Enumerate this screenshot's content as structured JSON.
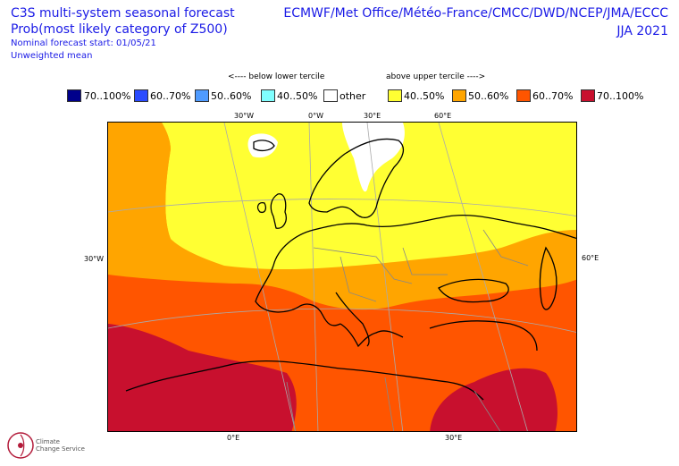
{
  "title": {
    "line1": "C3S multi-system seasonal forecast",
    "line2": "Prob(most likely category of Z500)",
    "line3": "Nominal forecast start: 01/05/21",
    "line4": "Unweighted mean"
  },
  "centres": "ECMWF/Met Office/Météo-France/CMCC/DWD/NCEP/JMA/ECCC",
  "season": "JJA 2021",
  "legend": {
    "below_header": "<---- below lower tercile",
    "above_header": "above upper tercile ---->",
    "items": [
      {
        "label": "70..100%",
        "color": "#00008b"
      },
      {
        "label": "60..70%",
        "color": "#2a4bff"
      },
      {
        "label": "50..60%",
        "color": "#4f9bff"
      },
      {
        "label": "40..50%",
        "color": "#80ffff"
      },
      {
        "label": "other",
        "color": "#ffffff"
      },
      {
        "label": "40..50%",
        "color": "#ffff33"
      },
      {
        "label": "50..60%",
        "color": "#ffa500"
      },
      {
        "label": "60..70%",
        "color": "#ff5500"
      },
      {
        "label": "70..100%",
        "color": "#c8102e"
      }
    ]
  },
  "axis_labels": {
    "top": [
      "30°W",
      "0°W",
      "30°E",
      "60°E"
    ],
    "left": "30°W",
    "right": "60°E",
    "bottom": [
      "0°E",
      "30°E"
    ]
  },
  "logo": {
    "icon": "copernicus-climate-change-service-logo",
    "text_line1": "Climate",
    "text_line2": "Change Service"
  }
}
